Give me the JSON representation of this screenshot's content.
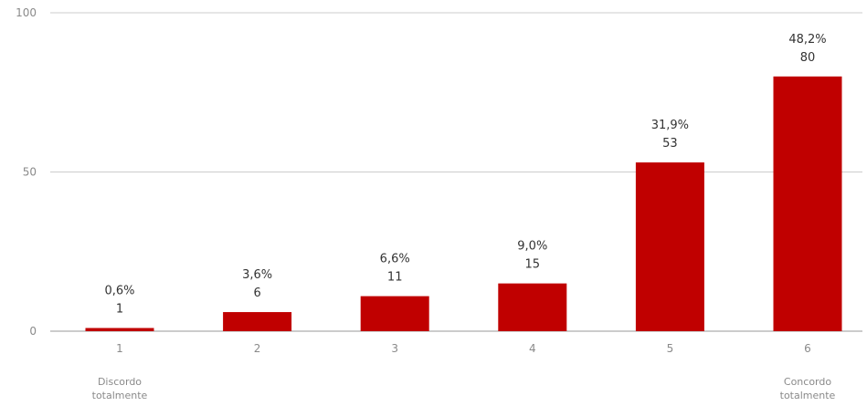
{
  "chart_data": {
    "type": "bar",
    "title": "",
    "xlabel": "",
    "ylabel": "",
    "categories": [
      "1",
      "2",
      "3",
      "4",
      "5",
      "6"
    ],
    "values": [
      1,
      6,
      11,
      15,
      53,
      80
    ],
    "percent_labels": [
      "0,6%",
      "3,6%",
      "6,6%",
      "9,0%",
      "31,9%",
      "48,2%"
    ],
    "anchor_labels": [
      {
        "category_index": 0,
        "lines": [
          "Discordo",
          "totalmente"
        ]
      },
      {
        "category_index": 5,
        "lines": [
          "Concordo",
          "totalmente"
        ]
      }
    ],
    "ylim": [
      0,
      100
    ],
    "yticks": [
      0,
      50,
      100
    ],
    "grid": true,
    "legend": "none",
    "colors": {
      "bar": "#c00000",
      "grid": "#cccccc",
      "tick_text": "#8a8a8a",
      "label_text": "#333333"
    }
  }
}
